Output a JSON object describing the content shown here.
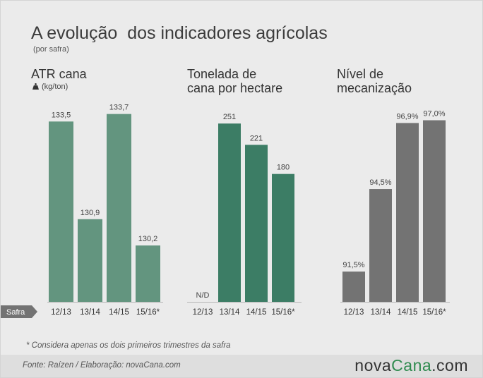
{
  "header": {
    "title": "A evolução  dos indicadores agrícolas",
    "subtitle": "(por safra)"
  },
  "axis_label": "Safra",
  "footnote": "* Considera apenas os dois primeiros trimestres da safra",
  "footer": {
    "source": "Fonte:  Raízen / Elaboração:  novaCana.com",
    "logo_main": "nova",
    "logo_accent": "Cana",
    "logo_suffix": ".com"
  },
  "chart_data": [
    {
      "type": "bar",
      "title_lines": [
        "ATR cana"
      ],
      "unit_label": "(kg/ton)",
      "unit_icon": "weight-icon",
      "categories": [
        "12/13",
        "13/14",
        "14/15",
        "15/16*"
      ],
      "values": [
        133.5,
        130.9,
        133.7,
        130.2
      ],
      "data_labels": [
        "133,5",
        "130,9",
        "133,7",
        "130,2"
      ],
      "ylim": [
        128.7,
        133.9
      ],
      "color": "#63957f"
    },
    {
      "type": "bar",
      "title_lines": [
        "Tonelada de",
        "cana por hectare"
      ],
      "categories": [
        "12/13",
        "13/14",
        "14/15",
        "15/16*"
      ],
      "values": [
        null,
        251,
        221,
        180
      ],
      "data_labels": [
        "N/D",
        "251",
        "221",
        "180"
      ],
      "ylim": [
        0,
        275
      ],
      "color": "#3c7d65"
    },
    {
      "type": "bar",
      "title_lines": [
        "Nível de",
        "mecanização"
      ],
      "categories": [
        "12/13",
        "13/14",
        "14/15",
        "15/16*"
      ],
      "values": [
        91.5,
        94.5,
        96.9,
        97.0
      ],
      "data_labels": [
        "91,5%",
        "94,5%",
        "96,9%",
        "97,0%"
      ],
      "ylim": [
        90.4,
        97.5
      ],
      "color": "#737373"
    }
  ]
}
